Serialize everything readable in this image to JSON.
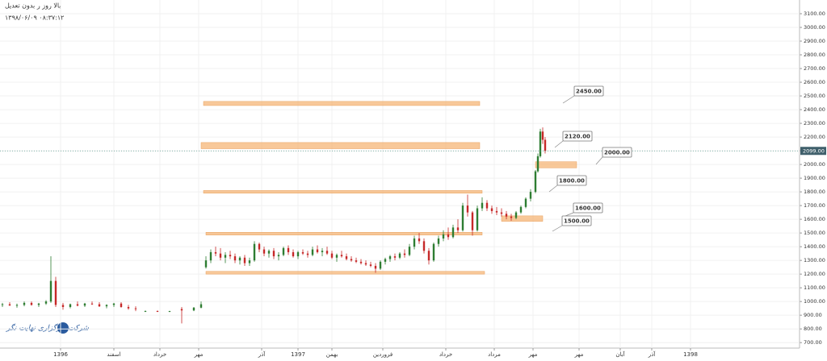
{
  "chart_data": {
    "type": "candlestick",
    "title": "بالا روز ر بدون تعدیل",
    "subtitle": "۱۳۹۸/۰۶/۰۹ ۰۸:۳۷:۱۲",
    "watermark": "شرکت کارگزاری نهایت نگر",
    "up_color": "#2e7d32",
    "down_color": "#c62828",
    "zone_color": "#f5b577",
    "grid": true,
    "xlim": [
      0,
      330
    ],
    "ylim": [
      660,
      3200
    ],
    "x": [
      1,
      4,
      7,
      10,
      13,
      16,
      19,
      21,
      23,
      26,
      29,
      32,
      35,
      38,
      41,
      44,
      47,
      50,
      53,
      56,
      60,
      65,
      70,
      75,
      80,
      83,
      85,
      87,
      89,
      91,
      93,
      95,
      97,
      99,
      101,
      103,
      105,
      107,
      109,
      111,
      113,
      115,
      117,
      119,
      121,
      123,
      125,
      127,
      129,
      131,
      133,
      135,
      137,
      139,
      141,
      143,
      145,
      147,
      149,
      151,
      153,
      155,
      157,
      159,
      161,
      163,
      165,
      167,
      169,
      171,
      173,
      175,
      177,
      179,
      181,
      183,
      185,
      187,
      189,
      191,
      193,
      195,
      197,
      199,
      201,
      203,
      205,
      207,
      209,
      211,
      213,
      215,
      217,
      219,
      221,
      222,
      223,
      224,
      225
    ],
    "open": [
      975,
      980,
      970,
      975,
      990,
      975,
      985,
      1000,
      1150,
      975,
      960,
      980,
      970,
      985,
      980,
      965,
      975,
      985,
      960,
      950,
      930,
      930,
      928,
      945,
      935,
      955,
      1250,
      1300,
      1360,
      1350,
      1320,
      1340,
      1330,
      1300,
      1320,
      1280,
      1300,
      1420,
      1380,
      1350,
      1370,
      1330,
      1340,
      1390,
      1360,
      1330,
      1360,
      1350,
      1340,
      1380,
      1360,
      1370,
      1350,
      1320,
      1340,
      1330,
      1310,
      1300,
      1290,
      1280,
      1270,
      1260,
      1240,
      1290,
      1310,
      1330,
      1320,
      1350,
      1340,
      1400,
      1460,
      1440,
      1370,
      1300,
      1420,
      1460,
      1490,
      1470,
      1540,
      1520,
      1700,
      1650,
      1520,
      1680,
      1720,
      1680,
      1660,
      1650,
      1640,
      1620,
      1610,
      1650,
      1690,
      1750,
      1800,
      1950,
      2060,
      2240,
      2180
    ],
    "high": [
      990,
      995,
      985,
      1000,
      1000,
      990,
      1010,
      1330,
      1180,
      990,
      985,
      1000,
      990,
      1000,
      995,
      980,
      990,
      995,
      975,
      965,
      935,
      935,
      932,
      960,
      960,
      1000,
      1330,
      1380,
      1400,
      1390,
      1360,
      1370,
      1350,
      1330,
      1340,
      1320,
      1440,
      1430,
      1400,
      1380,
      1390,
      1360,
      1400,
      1410,
      1380,
      1370,
      1380,
      1370,
      1400,
      1410,
      1390,
      1400,
      1370,
      1350,
      1370,
      1350,
      1330,
      1320,
      1310,
      1300,
      1290,
      1280,
      1300,
      1320,
      1340,
      1350,
      1360,
      1380,
      1420,
      1480,
      1500,
      1460,
      1390,
      1430,
      1480,
      1520,
      1540,
      1560,
      1600,
      1720,
      1780,
      1660,
      1700,
      1760,
      1740,
      1700,
      1690,
      1680,
      1660,
      1640,
      1660,
      1700,
      1760,
      1820,
      1960,
      2080,
      2260,
      2270,
      2200
    ],
    "low": [
      960,
      970,
      955,
      965,
      970,
      960,
      975,
      990,
      960,
      940,
      950,
      965,
      960,
      975,
      960,
      950,
      960,
      955,
      940,
      930,
      925,
      925,
      924,
      840,
      930,
      950,
      1240,
      1280,
      1330,
      1300,
      1280,
      1310,
      1280,
      1270,
      1260,
      1260,
      1290,
      1360,
      1330,
      1320,
      1310,
      1300,
      1330,
      1340,
      1320,
      1310,
      1340,
      1320,
      1330,
      1350,
      1330,
      1340,
      1310,
      1290,
      1320,
      1300,
      1290,
      1280,
      1270,
      1260,
      1250,
      1210,
      1230,
      1270,
      1290,
      1300,
      1310,
      1320,
      1330,
      1380,
      1420,
      1350,
      1270,
      1290,
      1400,
      1440,
      1450,
      1460,
      1500,
      1510,
      1620,
      1480,
      1510,
      1660,
      1660,
      1640,
      1630,
      1620,
      1600,
      1590,
      1600,
      1640,
      1680,
      1730,
      1790,
      1940,
      2050,
      2150,
      2080
    ],
    "close": [
      980,
      970,
      975,
      990,
      975,
      985,
      1000,
      1150,
      975,
      960,
      980,
      970,
      985,
      980,
      965,
      975,
      985,
      960,
      950,
      945,
      930,
      928,
      930,
      935,
      955,
      980,
      1300,
      1360,
      1350,
      1320,
      1340,
      1330,
      1300,
      1320,
      1280,
      1300,
      1420,
      1380,
      1350,
      1370,
      1330,
      1340,
      1390,
      1360,
      1330,
      1360,
      1350,
      1340,
      1380,
      1360,
      1370,
      1350,
      1320,
      1340,
      1330,
      1310,
      1300,
      1290,
      1280,
      1270,
      1260,
      1240,
      1290,
      1310,
      1330,
      1320,
      1350,
      1340,
      1400,
      1460,
      1440,
      1370,
      1300,
      1420,
      1460,
      1490,
      1470,
      1540,
      1520,
      1700,
      1650,
      1520,
      1680,
      1720,
      1680,
      1660,
      1650,
      1640,
      1620,
      1610,
      1650,
      1690,
      1750,
      1800,
      1950,
      2060,
      2240,
      2180,
      2099
    ],
    "yticks": [
      {
        "value": 700,
        "label": "700.00"
      },
      {
        "value": 800,
        "label": "800.00"
      },
      {
        "value": 900,
        "label": "900.00"
      },
      {
        "value": 1000,
        "label": "1000.00"
      },
      {
        "value": 1100,
        "label": "1100.00"
      },
      {
        "value": 1200,
        "label": "1200.00"
      },
      {
        "value": 1300,
        "label": "1300.00"
      },
      {
        "value": 1400,
        "label": "1400.00"
      },
      {
        "value": 1500,
        "label": "1500.00"
      },
      {
        "value": 1600,
        "label": "1600.00"
      },
      {
        "value": 1700,
        "label": "1700.00"
      },
      {
        "value": 1800,
        "label": "1800.00"
      },
      {
        "value": 1900,
        "label": "1900.00"
      },
      {
        "value": 2000,
        "label": "2000.00"
      },
      {
        "value": 2100,
        "label": "2100.00"
      },
      {
        "value": 2200,
        "label": "2200.00"
      },
      {
        "value": 2300,
        "label": "2300.00"
      },
      {
        "value": 2400,
        "label": "2400.00"
      },
      {
        "value": 2500,
        "label": "2500.00"
      },
      {
        "value": 2600,
        "label": "2600.00"
      },
      {
        "value": 2700,
        "label": "2700.00"
      },
      {
        "value": 2800,
        "label": "2800.00"
      },
      {
        "value": 2900,
        "label": "2900.00"
      },
      {
        "value": 3000,
        "label": "3000.00"
      },
      {
        "value": 3100,
        "label": "3100.00"
      }
    ],
    "xticks": [
      {
        "value": 25,
        "label": "1396"
      },
      {
        "value": 47,
        "label": "اسفند"
      },
      {
        "value": 66,
        "label": "خرداد"
      },
      {
        "value": 82,
        "label": "مهر"
      },
      {
        "value": 108,
        "label": "آذر"
      },
      {
        "value": 123,
        "label": "1397"
      },
      {
        "value": 137,
        "label": "بهمن"
      },
      {
        "value": 158,
        "label": "فروردین"
      },
      {
        "value": 184,
        "label": "خرداد"
      },
      {
        "value": 204,
        "label": "مرداد"
      },
      {
        "value": 220,
        "label": "مهر"
      },
      {
        "value": 239,
        "label": "مهر"
      },
      {
        "value": 256,
        "label": "آبان"
      },
      {
        "value": 269,
        "label": "آذر"
      },
      {
        "value": 285,
        "label": "1398"
      }
    ],
    "last_price": {
      "value": 2099,
      "label": "2099.00"
    },
    "zones": [
      {
        "low": 2430,
        "high": 2460,
        "x": [
          84,
          198
        ]
      },
      {
        "low": 2115,
        "high": 2160,
        "x": [
          83,
          198
        ]
      },
      {
        "low": 1790,
        "high": 1810,
        "x": [
          84,
          199
        ]
      },
      {
        "low": 1485,
        "high": 1505,
        "x": [
          85,
          199
        ]
      },
      {
        "low": 1200,
        "high": 1220,
        "x": [
          85,
          200
        ]
      },
      {
        "low": 1975,
        "high": 2020,
        "x": [
          221,
          238
        ]
      },
      {
        "low": 1585,
        "high": 1625,
        "x": [
          207,
          224
        ]
      }
    ],
    "annotations": [
      {
        "value": 2450,
        "label": "2450.00"
      },
      {
        "value": 2120,
        "label": "2120.00"
      },
      {
        "value": 2000,
        "label": "2000.00"
      },
      {
        "value": 1800,
        "label": "1800.00"
      },
      {
        "value": 1600,
        "label": "1600.00"
      },
      {
        "value": 1500,
        "label": "1500.00"
      }
    ]
  }
}
